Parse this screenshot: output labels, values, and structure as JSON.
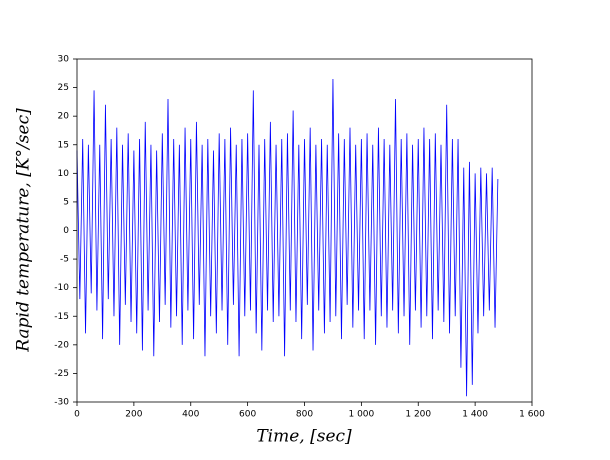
{
  "chart_data": {
    "type": "line",
    "xlabel": "Time, [sec]",
    "ylabel": "Rapid temperature, [K°/sec]",
    "color": "#0000ff",
    "xlim": [
      0,
      1600
    ],
    "ylim": [
      -30,
      30
    ],
    "xticks": [
      0,
      200,
      400,
      600,
      800,
      {
        "value": 1000,
        "label": "1 000"
      },
      {
        "value": 1200,
        "label": "1 200"
      },
      {
        "value": 1400,
        "label": "1 400"
      },
      {
        "value": 1600,
        "label": "1 600"
      }
    ],
    "yticks": [
      -30,
      -25,
      -20,
      -15,
      -10,
      -5,
      0,
      5,
      10,
      15,
      20,
      25,
      30
    ],
    "x": [
      0,
      10,
      20,
      30,
      40,
      50,
      60,
      70,
      80,
      90,
      100,
      110,
      120,
      130,
      140,
      150,
      160,
      170,
      180,
      190,
      200,
      210,
      220,
      230,
      240,
      250,
      260,
      270,
      280,
      290,
      300,
      310,
      320,
      330,
      340,
      350,
      360,
      370,
      380,
      390,
      400,
      410,
      420,
      430,
      440,
      450,
      460,
      470,
      480,
      490,
      500,
      510,
      520,
      530,
      540,
      550,
      560,
      570,
      580,
      590,
      600,
      610,
      620,
      630,
      640,
      650,
      660,
      670,
      680,
      690,
      700,
      710,
      720,
      730,
      740,
      750,
      760,
      770,
      780,
      790,
      800,
      810,
      820,
      830,
      840,
      850,
      860,
      870,
      880,
      890,
      900,
      910,
      920,
      930,
      940,
      950,
      960,
      970,
      980,
      990,
      1000,
      1010,
      1020,
      1030,
      1040,
      1050,
      1060,
      1070,
      1080,
      1090,
      1100,
      1110,
      1120,
      1130,
      1140,
      1150,
      1160,
      1170,
      1180,
      1190,
      1200,
      1210,
      1220,
      1230,
      1240,
      1250,
      1260,
      1270,
      1280,
      1290,
      1300,
      1310,
      1320,
      1330,
      1340,
      1350,
      1360,
      1370,
      1380,
      1390,
      1400,
      1410,
      1420,
      1430,
      1440,
      1450,
      1460,
      1470,
      1480
    ],
    "values": [
      14,
      -12,
      16,
      -18,
      15,
      -11,
      24.5,
      -14,
      15,
      -19,
      22,
      -12,
      16,
      -15,
      18,
      -20,
      15,
      -13,
      17,
      -16,
      14,
      -18,
      16,
      -21,
      19,
      -14,
      15,
      -22,
      14,
      -16,
      17,
      -13,
      23,
      -17,
      16,
      -15,
      15,
      -20,
      18,
      -14,
      16,
      -19,
      19,
      -13,
      15,
      -22,
      16,
      -15,
      14,
      -18,
      17,
      -14,
      16,
      -20,
      18,
      -13,
      15,
      -22,
      16,
      -15,
      17,
      -14,
      24.5,
      -18,
      15,
      -21,
      16,
      -14,
      19,
      -16,
      15,
      -15,
      16,
      -22,
      17,
      -14,
      21,
      -16,
      15,
      -19,
      16,
      -13,
      18,
      -21,
      15,
      -14,
      16,
      -18,
      15,
      -16,
      26.5,
      -15,
      17,
      -19,
      16,
      -13,
      18,
      -17,
      15,
      -14,
      16,
      -19,
      17,
      -14,
      15,
      -20,
      18,
      -15,
      16,
      -17,
      15,
      -14,
      23,
      -18,
      16,
      -15,
      17,
      -20,
      15,
      -14,
      16,
      -17,
      18,
      -15,
      16,
      -19,
      17,
      -14,
      15,
      -16,
      22,
      -18,
      16,
      -15,
      16,
      -24,
      11,
      -29,
      12,
      -27,
      10,
      -18,
      11,
      -15,
      10,
      -14,
      11,
      -17,
      9
    ]
  }
}
